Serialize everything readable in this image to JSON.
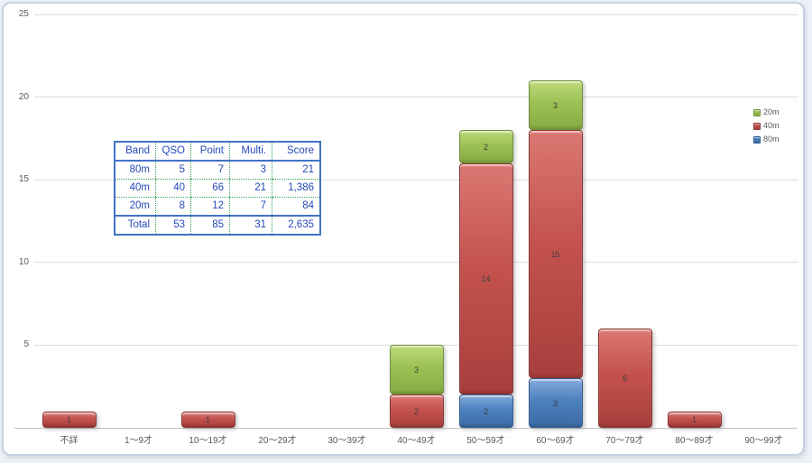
{
  "colors": {
    "frame_border": "#c7d1e0",
    "gridline": "#dcdcdc",
    "axis_line": "#c3c3c3",
    "axis_text": "#595959",
    "segment_label_text": "#3d3d3d",
    "table_text": "#2449B8",
    "table_outer_border": "#4472C4",
    "table_inner_border": "#33A050"
  },
  "chart_data": {
    "type": "bar",
    "stacked": true,
    "title": "",
    "xlabel": "",
    "ylabel": "",
    "categories": [
      "不詳",
      "1～9才",
      "10～19才",
      "20～29才",
      "30～39才",
      "40～49才",
      "50～59才",
      "60～69才",
      "70～79才",
      "80～89才",
      "90～99才"
    ],
    "series": [
      {
        "name": "80m",
        "light": "#85ABDB",
        "base": "#4C80BE",
        "dark": "#3A6BA6",
        "border": "#2F5A8E",
        "values": [
          0,
          0,
          0,
          0,
          0,
          0,
          2,
          3,
          0,
          0,
          0
        ]
      },
      {
        "name": "40m",
        "light": "#DB7873",
        "base": "#C4524E",
        "dark": "#A73F3C",
        "border": "#8B3532",
        "values": [
          1,
          0,
          1,
          0,
          0,
          2,
          14,
          15,
          6,
          1,
          0
        ]
      },
      {
        "name": "20m",
        "light": "#BCD97B",
        "base": "#9CC153",
        "dark": "#86AB44",
        "border": "#719238",
        "values": [
          0,
          0,
          0,
          0,
          0,
          3,
          2,
          3,
          0,
          0,
          0
        ]
      }
    ],
    "ylim": [
      0,
      25
    ],
    "yticks": [
      5,
      10,
      15,
      20,
      25
    ],
    "grid": true,
    "legend_position": "right",
    "data_labels": true
  },
  "legend": {
    "items": [
      {
        "label": "20m",
        "base": "#9CC153",
        "dark": "#86AB44",
        "border": "#719238"
      },
      {
        "label": "40m",
        "base": "#C4524E",
        "dark": "#A73F3C",
        "border": "#8B3532"
      },
      {
        "label": "80m",
        "base": "#4C80BE",
        "dark": "#3A6BA6",
        "border": "#2F5A8E"
      }
    ]
  },
  "table": {
    "headers": [
      "Band",
      "QSO",
      "Point",
      "Multi.",
      "Score"
    ],
    "rows": [
      [
        "80m",
        "5",
        "7",
        "3",
        "21"
      ],
      [
        "40m",
        "40",
        "66",
        "21",
        "1,386"
      ],
      [
        "20m",
        "8",
        "12",
        "7",
        "84"
      ],
      [
        "Total",
        "53",
        "85",
        "31",
        "2,635"
      ]
    ]
  }
}
